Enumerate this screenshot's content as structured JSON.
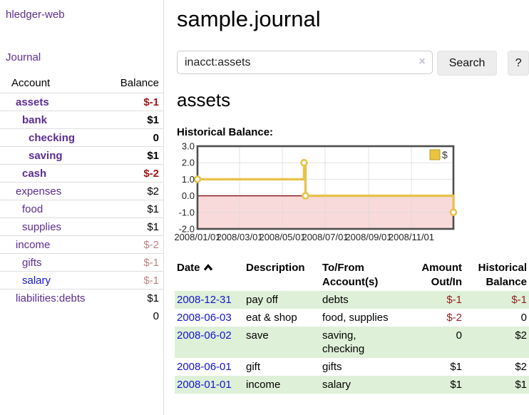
{
  "app": {
    "title": "hledger-web"
  },
  "sidebar": {
    "journal_link": "Journal",
    "accounts_table": {
      "account_header": "Account",
      "balance_header": "Balance",
      "rows": [
        {
          "account": "assets",
          "balance": "$-1",
          "level": 1,
          "bold": true,
          "negative": true,
          "link_color": "purple"
        },
        {
          "account": "bank",
          "balance": "$1",
          "level": 2,
          "bold": true,
          "negative": false,
          "link_color": "purple"
        },
        {
          "account": "checking",
          "balance": "0",
          "level": 3,
          "bold": true,
          "negative": false,
          "link_color": "purple"
        },
        {
          "account": "saving",
          "balance": "$1",
          "level": 3,
          "bold": true,
          "negative": false,
          "link_color": "purple"
        },
        {
          "account": "cash",
          "balance": "$-2",
          "level": 2,
          "bold": true,
          "negative": true,
          "link_color": "purple"
        },
        {
          "account": "expenses",
          "balance": "$2",
          "level": 1,
          "bold": false,
          "negative": false,
          "link_color": "purple"
        },
        {
          "account": "food",
          "balance": "$1",
          "level": 2,
          "bold": false,
          "negative": false,
          "link_color": "purple"
        },
        {
          "account": "supplies",
          "balance": "$1",
          "level": 2,
          "bold": false,
          "negative": false,
          "link_color": "purple"
        },
        {
          "account": "income",
          "balance": "$-2",
          "level": 1,
          "bold": false,
          "negative": true,
          "link_color": "purple"
        },
        {
          "account": "gifts",
          "balance": "$-1",
          "level": 2,
          "bold": false,
          "negative": true,
          "link_color": "purple"
        },
        {
          "account": "salary",
          "balance": "$-1",
          "level": 2,
          "bold": false,
          "negative": true,
          "link_color": "blue"
        },
        {
          "account": "liabilities:debts",
          "balance": "$1",
          "level": 1,
          "bold": false,
          "negative": false,
          "link_color": "purple"
        }
      ],
      "total": "0"
    }
  },
  "header": {
    "title": "sample.journal"
  },
  "search": {
    "value": "inacct:assets",
    "clear_icon": "×",
    "button_label": "Search",
    "help_button_label": "?"
  },
  "account_page": {
    "title": "assets",
    "chart_label": "Historical Balance:"
  },
  "chart_data": {
    "type": "line",
    "title": "Historical Balance of assets",
    "step": "after",
    "series": [
      {
        "name": "$",
        "points": [
          {
            "date": "2008-01-01",
            "value": 1
          },
          {
            "date": "2008-06-01",
            "value": 2
          },
          {
            "date": "2008-06-03",
            "value": 0
          },
          {
            "date": "2008-12-31",
            "value": -1
          }
        ]
      }
    ],
    "x_range": [
      "2008-01-01",
      "2008-12-31"
    ],
    "x_ticks": [
      "2008/01/01",
      "2008/03/01",
      "2008/05/01",
      "2008/07/01",
      "2008/09/01",
      "2008/11/01"
    ],
    "y_ticks": [
      3.0,
      2.0,
      1.0,
      0.0,
      -1.0,
      -2.0
    ],
    "ylim": [
      -2.0,
      3.0
    ],
    "grid": true,
    "legend_position": "top-right",
    "colors": {
      "line": "#e7c24b",
      "marker_fill": "#ffffff",
      "negative_region": "#f9dada",
      "zero_line": "#7d0000",
      "border": "#4d4d4d",
      "grid": "#d9d9d9",
      "legend_fill": "#eac43d",
      "legend_border": "#b89a28"
    }
  },
  "register": {
    "columns": [
      {
        "line1": "Date",
        "line2": ""
      },
      {
        "line1": "Description",
        "line2": ""
      },
      {
        "line1": "To/From",
        "line2": "Account(s)"
      },
      {
        "line1": "Amount",
        "line2": "Out/In"
      },
      {
        "line1": "Historical",
        "line2": "Balance"
      }
    ],
    "rows": [
      {
        "date": "2008-12-31",
        "description": "pay off",
        "accounts": "debts",
        "amount": "$-1",
        "balance": "$-1"
      },
      {
        "date": "2008-06-03",
        "description": "eat & shop",
        "accounts": "food, supplies",
        "amount": "$-2",
        "balance": "0"
      },
      {
        "date": "2008-06-02",
        "description": "save",
        "accounts": "saving,\nchecking",
        "amount": "0",
        "balance": "$2"
      },
      {
        "date": "2008-06-01",
        "description": "gift",
        "accounts": "gifts",
        "amount": "$1",
        "balance": "$2"
      },
      {
        "date": "2008-01-01",
        "description": "income",
        "accounts": "salary",
        "amount": "$1",
        "balance": "$1"
      }
    ]
  }
}
